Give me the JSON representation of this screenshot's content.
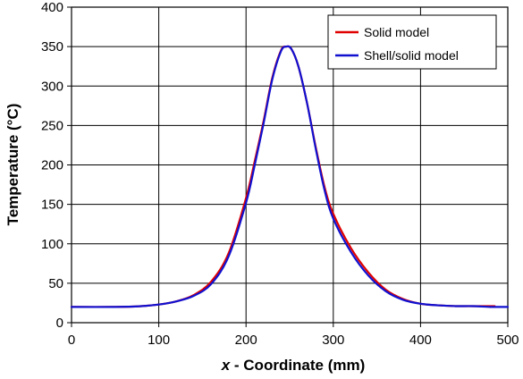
{
  "chart_data": {
    "type": "line",
    "title": "",
    "xlabel_var": "x",
    "xlabel_rest": " - Coordinate (mm)",
    "ylabel": "Temperature (°C)",
    "xlim": [
      0,
      500
    ],
    "ylim": [
      0,
      400
    ],
    "xticks": [
      0,
      100,
      200,
      300,
      400,
      500
    ],
    "yticks": [
      0,
      50,
      100,
      150,
      200,
      250,
      300,
      350,
      400
    ],
    "grid": true,
    "legend_position": "top-right",
    "series": [
      {
        "name": "Solid model",
        "color": "#e00000",
        "x": [
          0,
          50,
          80,
          100,
          120,
          140,
          160,
          180,
          200,
          210,
          220,
          230,
          240,
          246,
          252,
          260,
          270,
          280,
          290,
          300,
          320,
          340,
          360,
          380,
          400,
          420,
          440,
          460,
          485
        ],
        "y": [
          20,
          20,
          21,
          23,
          27,
          35,
          52,
          88,
          158,
          205,
          255,
          310,
          345,
          350,
          347,
          325,
          278,
          222,
          172,
          138,
          95,
          64,
          42,
          30,
          24,
          22,
          21,
          21,
          21
        ]
      },
      {
        "name": "Shell/solid model",
        "color": "#1010d0",
        "x": [
          0,
          50,
          80,
          100,
          120,
          140,
          160,
          180,
          200,
          210,
          220,
          230,
          240,
          246,
          252,
          260,
          270,
          280,
          290,
          300,
          320,
          340,
          360,
          380,
          400,
          420,
          440,
          460,
          480,
          500
        ],
        "y": [
          20,
          20,
          21,
          23,
          27,
          34,
          49,
          84,
          152,
          200,
          252,
          308,
          344,
          350,
          347,
          325,
          278,
          220,
          168,
          132,
          90,
          60,
          40,
          29,
          24,
          22,
          21,
          21,
          20,
          20
        ]
      }
    ]
  }
}
